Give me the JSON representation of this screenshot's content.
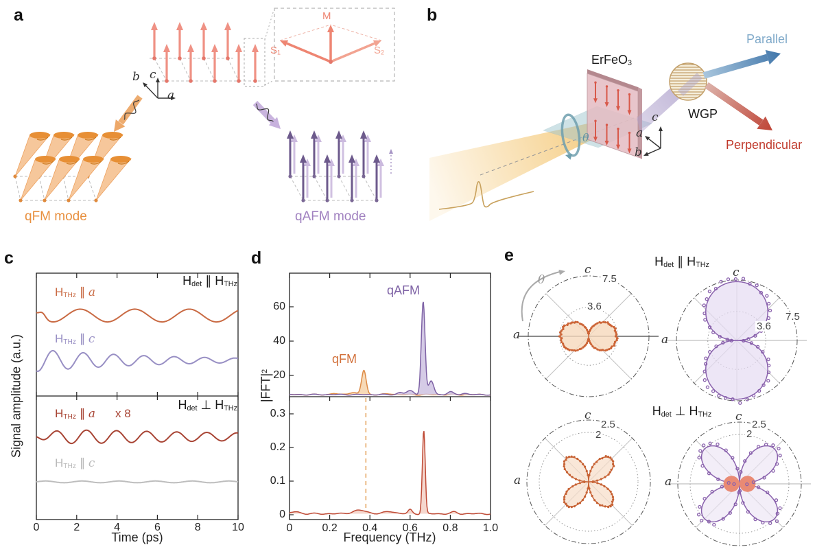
{
  "figure": {
    "panel_letters": [
      "a",
      "b",
      "c",
      "d",
      "e"
    ],
    "panel_a": {
      "triad": {
        "up": "*c*",
        "upper_left": "*b*",
        "right": "*a*"
      },
      "inset": {
        "m": "M",
        "s1": "S_{1}",
        "s2": "S_{2}"
      },
      "qfm_label": "qFM mode",
      "qafm_label": "qAFM mode",
      "colors": {
        "spin": "#ef9184",
        "spin_dot": "#e4776b",
        "qfm_cone": "#f6c79b",
        "qfm_rim": "#e78f35",
        "qfm_text": "#e8903f",
        "qafm_dark": "#6d5a8c",
        "qafm_light": "#cbbade",
        "qafm_text": "#a182c0",
        "wave_orange": "#eda869",
        "wave_purple": "#c7b1dd"
      }
    },
    "panel_b": {
      "crystal_label": "ErFeO_{3}",
      "wgp_label": "WGP",
      "parallel_label": "Parallel",
      "perpendicular_label": "Perpendicular",
      "theta_label": "θ",
      "triad": {
        "up": "*c*",
        "upper_left": "*a*",
        "lower_left": "*b*"
      },
      "colors": {
        "beam_in": "#f3c268",
        "beam_out": "#b0a3cd",
        "plane": "#9fc6cf",
        "ring": "#6f9fae",
        "crystal_face": "#e5bcc2",
        "crystal_edge": "#bb9298",
        "spin": "#d8594a",
        "wgp": "#c3a06b",
        "parallel_text": "#7fa9c9",
        "parallel_arrow": "#3e74a9",
        "perpendicular_text": "#c0392b",
        "perpendicular_arrow": "#bf4436"
      }
    },
    "panel_c": {
      "cond_top": "H_{det} ∥ H_{THz}",
      "cond_bottom": "H_{det} ⊥ H_{THz}",
      "x8": "x 8"
    },
    "panel_d": {
      "qfm": "qFM",
      "qafm": "qAFM"
    },
    "panel_e": {
      "title_top": "H_{det} ∥ H_{THz}",
      "title_bottom": "H_{det} ⊥ H_{THz}",
      "theta": "θ",
      "c": "*c*",
      "a": "*a*"
    }
  },
  "chart_data": [
    {
      "id": "panel-c-time-traces",
      "type": "line",
      "xlabel": "Time (ps)",
      "ylabel": "Signal amplitude (a.u.)",
      "xlim": [
        0,
        10
      ],
      "xticks": [
        0,
        2,
        4,
        6,
        8,
        10
      ],
      "xtick_labels": [
        "0",
        "2",
        "4",
        "6",
        "8",
        "10"
      ],
      "subpanels": [
        {
          "condition": "H_{det} ∥ H_{THz}",
          "traces": [
            {
              "label": "H_{THz} ∥ *a*",
              "color": "#c96a43",
              "mode": "qFM oscillation",
              "freq_thz": 0.37,
              "amp_frac": 0.052,
              "baseline_frac": 0.345,
              "components": [
                {
                  "type": "sin",
                  "freq": 0.37,
                  "t0": 1.5,
                  "amp": 1
                },
                {
                  "type": "gauss",
                  "t0": 0.3,
                  "w": 0.22,
                  "amp": 0.78
                }
              ]
            },
            {
              "label": "H_{THz} ∥ *c*",
              "color": "#988fc4",
              "mode": "qAFM oscillation",
              "freq_thz": 0.665,
              "amp_frac": 0.09,
              "baseline_frac": 0.71,
              "components": [
                {
                  "type": "sin",
                  "freq": 0.665,
                  "t0": 0.45,
                  "amp": 1,
                  "decay": 0.025
                }
              ]
            }
          ]
        },
        {
          "condition": "H_{det} ⊥ H_{THz}",
          "traces": [
            {
              "label": "H_{THz} ∥ *a*",
              "scale": "x 8",
              "color": "#a84434",
              "mode": "qAFM oscillation",
              "freq_thz": 0.67,
              "amp_frac": 0.067,
              "baseline_frac": 0.33,
              "components": [
                {
                  "type": "sin",
                  "freq": 0.67,
                  "t0": 0.62,
                  "amp": 1,
                  "decay": 0.012,
                  "growth": 0.7
                }
              ]
            },
            {
              "label": "H_{THz} ∥ *c*",
              "color": "#bdbdbd",
              "mode": "no signal",
              "freq_thz": 0,
              "amp_frac": 0.007,
              "baseline_frac": 0.695,
              "components": [
                {
                  "type": "sin",
                  "freq": 0.55,
                  "t0": 0,
                  "amp": 1
                }
              ]
            }
          ]
        }
      ]
    },
    {
      "id": "panel-d-fft-spectra",
      "type": "area",
      "xlabel": "Frequency (THz)",
      "ylabel": "|FFT|^{2}",
      "xlim": [
        0,
        1.0
      ],
      "xticks": [
        0,
        0.2,
        0.4,
        0.6,
        0.8,
        1.0
      ],
      "xtick_labels": [
        "0",
        "0.2",
        "0.4",
        "0.6",
        "0.8",
        "1.0"
      ],
      "subpanels": [
        {
          "detection": "H_{det} ∥ H_{THz}",
          "yticks": [
            20,
            40,
            60
          ],
          "ytick_labels": [
            "20",
            "40",
            "60"
          ],
          "pedestal": 8.8,
          "series": [
            {
              "name": "qFM",
              "line": "#dd8a45",
              "fill": "rgba(246,211,171,0.85)",
              "peak_thz": 0.37,
              "peak_value": 23,
              "width_thz": 0.016,
              "bumps": [
                [
                  0.31,
                  1.2,
                  0.03
                ],
                [
                  0.22,
                  0.7,
                  0.02
                ],
                [
                  0.5,
                  0.5,
                  0.03
                ]
              ]
            },
            {
              "name": "qAFM",
              "line": "#7e62a5",
              "fill": "rgba(206,194,226,0.85)",
              "peak_thz": 0.665,
              "peak_value": 63,
              "width_thz": 0.013,
              "bumps": [
                [
                  0.705,
                  8,
                  0.018
                ],
                [
                  0.6,
                  2.2,
                  0.025
                ],
                [
                  0.55,
                  1.2,
                  0.02
                ],
                [
                  0.8,
                  1.6,
                  0.02
                ],
                [
                  0.87,
                  0.8,
                  0.02
                ]
              ]
            }
          ]
        },
        {
          "detection": "H_{det} ⊥ H_{THz}",
          "yticks": [
            0,
            0.1,
            0.2,
            0.3
          ],
          "ytick_labels": [
            "0",
            "0.1",
            "0.2",
            "0.3"
          ],
          "pedestal": 0.003,
          "dashed_line_thz": 0.38,
          "series": [
            {
              "name": "qAFM",
              "line": "#bf4b36",
              "fill": "rgba(243,208,198,0.85)",
              "peak_thz": 0.668,
              "peak_value": 0.25,
              "width_thz": 0.01,
              "bumps": [
                [
                  0.35,
                  0.01,
                  0.05
                ],
                [
                  0.03,
                  0.006,
                  0.03
                ],
                [
                  0.5,
                  0.007,
                  0.035
                ],
                [
                  0.6,
                  0.012,
                  0.014
                ],
                [
                  0.82,
                  0.005,
                  0.02
                ]
              ]
            }
          ]
        }
      ]
    },
    {
      "id": "panel-e-polar-angle-dependence",
      "type": "polar",
      "angle_axis_labels": {
        "top": "*c*",
        "left": "*a*"
      },
      "theta_label": "θ",
      "plots": [
        {
          "position": "top-left",
          "detection": "H_{det} ∥ H_{THz}",
          "mode": "qFM",
          "color": "#cc6436",
          "fill": "rgba(246,216,188,0.8)",
          "n_lobes": 2,
          "orientation_deg": 0,
          "max_r": 3.5,
          "rings": [
            3.6,
            7.5
          ],
          "marker_style": "dense-beads"
        },
        {
          "position": "top-right",
          "detection": "H_{det} ∥ H_{THz}",
          "mode": "qAFM",
          "color": "#8a62ad",
          "fill": "rgba(230,219,242,0.7)",
          "n_lobes": 2,
          "orientation_deg": 90,
          "max_r": 7.3,
          "rings": [
            3.6,
            7.5
          ],
          "marker_style": "dots"
        },
        {
          "position": "bottom-left",
          "detection": "H_{det} ⊥ H_{THz}",
          "mode": "qFM",
          "color": "#c76234",
          "fill": "rgba(247,221,200,0.7)",
          "n_lobes": 4,
          "orientation_deg": 45,
          "max_r": 1.3,
          "rings": [
            2,
            2.5
          ],
          "marker_style": "dense-beads"
        },
        {
          "position": "bottom-right",
          "detection": "H_{det} ⊥ H_{THz}",
          "mode": "qAFM",
          "color": "#8a62ad",
          "fill": "rgba(235,226,244,0.6)",
          "n_lobes": 4,
          "orientation_deg": 45,
          "max_r": 2.0,
          "rings": [
            2,
            2.5
          ],
          "marker_style": "dots",
          "secondary": {
            "color": "#e98a74",
            "n_lobes": 2,
            "orientation_deg": 0,
            "max_r": 0.65
          }
        }
      ]
    }
  ]
}
